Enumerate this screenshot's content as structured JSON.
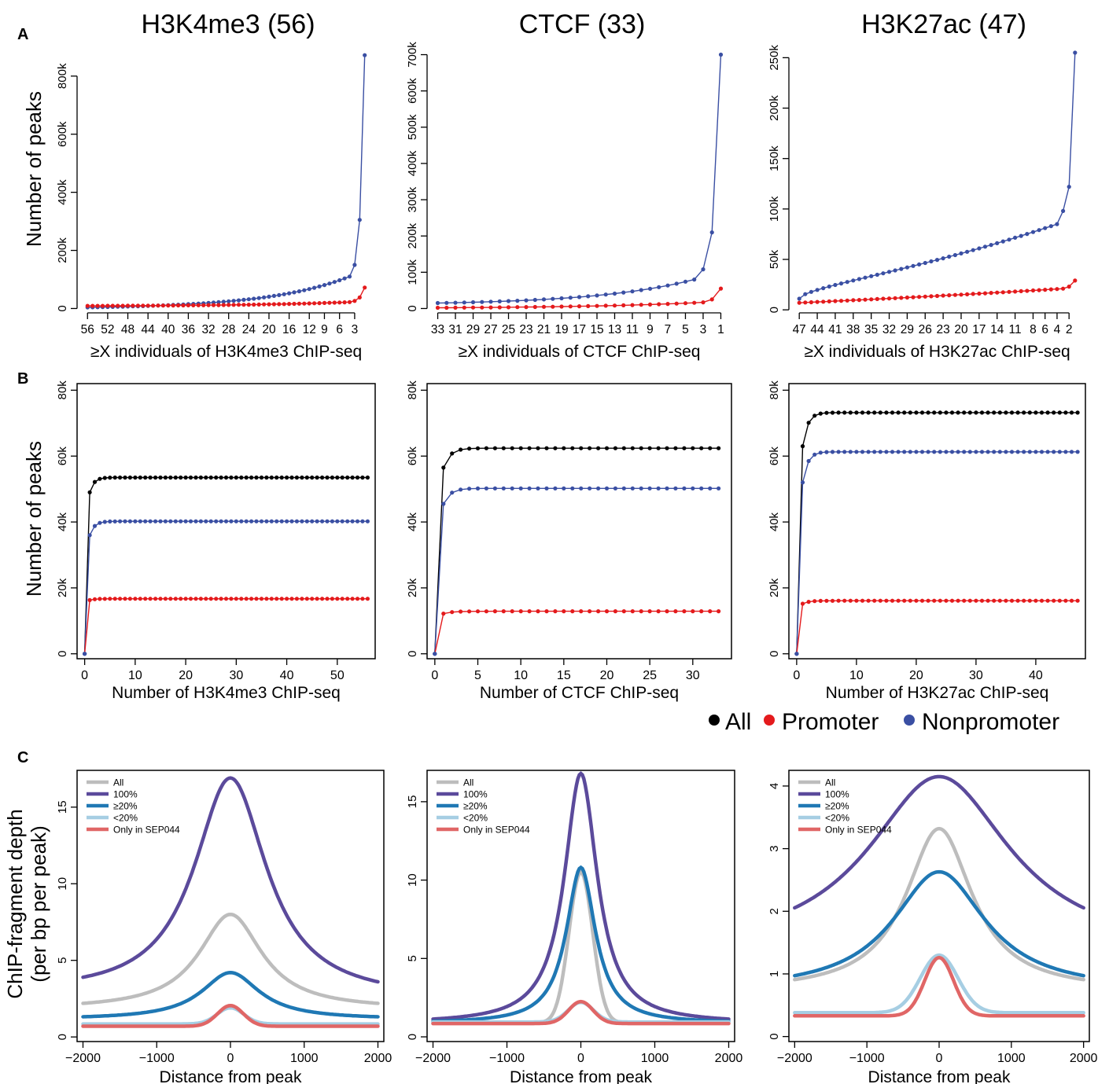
{
  "column_titles": [
    "H3K4me3 (56)",
    "CTCF (33)",
    "H3K27ac (47)"
  ],
  "panel_letters": [
    "A",
    "B",
    "C"
  ],
  "row_ylabels": {
    "A": "Number of peaks",
    "B": "Number of peaks",
    "C": [
      "ChIP-fragment depth",
      "(per bp per peak)"
    ]
  },
  "legend_b": [
    {
      "label": "All",
      "color": "#000000"
    },
    {
      "label": "Promoter",
      "color": "#e41a1c"
    },
    {
      "label": "Nonpromoter",
      "color": "#3a4fa3"
    }
  ],
  "colors": {
    "promoter": "#e41a1c",
    "nonpromoter": "#3a4fa3",
    "all": "#000000",
    "c_all": "#bdbdbd",
    "c_100": "#5b4a9b",
    "c_ge20": "#1f78b4",
    "c_lt20": "#a6cee3",
    "c_sep044": "#e06666"
  },
  "chart_data": [
    {
      "id": "A1",
      "type": "line",
      "xlabel": "≥X individuals of H3K4me3 ChIP-seq",
      "ylabel": "Number of peaks",
      "x_reversed": true,
      "x_from": 56,
      "x_to": 1,
      "xticks": [
        56,
        52,
        48,
        44,
        40,
        36,
        32,
        28,
        24,
        20,
        16,
        12,
        9,
        6,
        3
      ],
      "yticks": [
        0,
        200000,
        400000,
        600000,
        800000
      ],
      "ytick_labels": [
        "0",
        "200k",
        "400k",
        "600k",
        "800k"
      ],
      "ylim": [
        -15000,
        905000
      ],
      "series": [
        {
          "key": "nonpromoter",
          "shape": "exp",
          "start": 4000,
          "end": 110000,
          "k": 3.2,
          "tail": [
            [
              3,
              150000
            ],
            [
              2,
              305000
            ],
            [
              1,
              872000
            ]
          ]
        },
        {
          "key": "promoter",
          "shape": "exp",
          "start": 9000,
          "end": 22000,
          "k": 2.5,
          "tail": [
            [
              3,
              26000
            ],
            [
              2,
              38000
            ],
            [
              1,
              72000
            ]
          ]
        }
      ]
    },
    {
      "id": "A2",
      "type": "line",
      "xlabel": "≥X individuals of CTCF ChIP-seq",
      "ylabel": "",
      "x_reversed": true,
      "x_from": 33,
      "x_to": 1,
      "xticks": [
        33,
        31,
        29,
        27,
        25,
        23,
        21,
        19,
        17,
        15,
        13,
        11,
        9,
        7,
        5,
        3,
        1
      ],
      "yticks": [
        0,
        100000,
        200000,
        300000,
        400000,
        500000,
        600000,
        700000
      ],
      "ytick_labels": [
        "0",
        "100k",
        "200k",
        "300k",
        "400k",
        "500k",
        "600k",
        "700k"
      ],
      "ylim": [
        -12000,
        725000
      ],
      "series": [
        {
          "key": "nonpromoter",
          "shape": "exp",
          "start": 15000,
          "end": 80000,
          "k": 2.6,
          "tail": [
            [
              3,
              108000
            ],
            [
              2,
              210000
            ],
            [
              1,
              700000
            ]
          ]
        },
        {
          "key": "promoter",
          "shape": "exp",
          "start": 2000,
          "end": 17000,
          "k": 2.2,
          "tail": [
            [
              2,
              25000
            ],
            [
              1,
              55000
            ]
          ]
        }
      ]
    },
    {
      "id": "A3",
      "type": "line",
      "xlabel": "≥X individuals of H3K27ac ChIP-seq",
      "ylabel": "",
      "x_reversed": true,
      "x_from": 47,
      "x_to": 1,
      "xticks": [
        47,
        44,
        41,
        38,
        35,
        32,
        29,
        26,
        23,
        20,
        17,
        14,
        11,
        8,
        6,
        4,
        2
      ],
      "yticks": [
        0,
        50000,
        100000,
        150000,
        200000,
        250000
      ],
      "ytick_labels": [
        "0",
        "50k",
        "100k",
        "150k",
        "200k",
        "250k"
      ],
      "ylim": [
        -3000,
        262000
      ],
      "series": [
        {
          "key": "nonpromoter",
          "shape": "sigmoid",
          "start": 11000,
          "end": 85000,
          "tail": [
            [
              3,
              98000
            ],
            [
              2,
              122000
            ],
            [
              1,
              255000
            ]
          ]
        },
        {
          "key": "promoter",
          "shape": "lin",
          "start": 7000,
          "end": 21000,
          "tail": [
            [
              2,
              23000
            ],
            [
              1,
              29000
            ]
          ]
        }
      ]
    },
    {
      "id": "B1",
      "type": "line",
      "xlabel": "Number of H3K4me3 ChIP-seq",
      "ylabel": "Number of peaks",
      "x_reversed": false,
      "x_from": 0,
      "x_to": 56,
      "xticks": [
        0,
        10,
        20,
        30,
        40,
        50
      ],
      "xlim": [
        -1.5,
        57.5
      ],
      "yticks": [
        0,
        20000,
        40000,
        60000,
        80000
      ],
      "ytick_labels": [
        "0",
        "20k",
        "40k",
        "60k",
        "80k"
      ],
      "ylim": [
        -1500,
        82000
      ],
      "series": [
        {
          "key": "all",
          "start": 49000,
          "plateau": 53500,
          "k": 1.2
        },
        {
          "key": "nonpromoter",
          "start": 36000,
          "plateau": 40200,
          "k": 1.1
        },
        {
          "key": "promoter",
          "start": 16300,
          "plateau": 16700,
          "k": 1.0
        }
      ]
    },
    {
      "id": "B2",
      "type": "line",
      "xlabel": "Number of CTCF ChIP-seq",
      "ylabel": "",
      "x_reversed": false,
      "x_from": 0,
      "x_to": 33,
      "xticks": [
        0,
        5,
        10,
        15,
        20,
        25,
        30
      ],
      "xlim": [
        -0.9,
        34.5
      ],
      "yticks": [
        0,
        20000,
        40000,
        60000,
        80000
      ],
      "ytick_labels": [
        "0",
        "20k",
        "40k",
        "60k",
        "80k"
      ],
      "ylim": [
        -1500,
        82000
      ],
      "series": [
        {
          "key": "all",
          "start": 56500,
          "plateau": 62400,
          "k": 1.3
        },
        {
          "key": "nonpromoter",
          "start": 45500,
          "plateau": 50200,
          "k": 1.3
        },
        {
          "key": "promoter",
          "start": 12200,
          "plateau": 12900,
          "k": 1.0
        }
      ]
    },
    {
      "id": "B3",
      "type": "line",
      "xlabel": "Number of H3K27ac ChIP-seq",
      "ylabel": "",
      "x_reversed": false,
      "x_from": 0,
      "x_to": 47,
      "xticks": [
        0,
        10,
        20,
        30,
        40
      ],
      "xlim": [
        -1.3,
        48.3
      ],
      "yticks": [
        0,
        20000,
        40000,
        60000,
        80000
      ],
      "ytick_labels": [
        "0",
        "20k",
        "40k",
        "60k",
        "80k"
      ],
      "ylim": [
        -1500,
        82000
      ],
      "series": [
        {
          "key": "all",
          "start": 63000,
          "plateau": 73200,
          "k": 1.2
        },
        {
          "key": "nonpromoter",
          "start": 52000,
          "plateau": 61300,
          "k": 1.2
        },
        {
          "key": "promoter",
          "start": 15200,
          "plateau": 16100,
          "k": 1.0
        }
      ]
    },
    {
      "id": "C1",
      "type": "line",
      "xlabel": "Distance from peak",
      "ylabel": "ChIP-fragment depth (per bp per peak)",
      "xlim": [
        -2080,
        2080
      ],
      "xticks": [
        -2000,
        -1000,
        0,
        1000,
        2000
      ],
      "xtick_labels": [
        "−2000",
        "−1000",
        "0",
        "1000",
        "2000"
      ],
      "ylim": [
        -0.3,
        17.4
      ],
      "yticks": [
        0,
        5,
        10,
        15
      ],
      "legend": [
        "All",
        "100%",
        "≥20%",
        "<20%",
        "Only in SEP044"
      ],
      "series": [
        {
          "key": "c_all",
          "base": 1.8,
          "peak": 8.0,
          "w": 520,
          "kind": "lor"
        },
        {
          "key": "c_100",
          "base": 2.4,
          "base_left": 2.7,
          "peak": 16.9,
          "w": 600,
          "kind": "lor"
        },
        {
          "key": "c_ge20",
          "base": 1.15,
          "peak": 4.2,
          "w": 480,
          "kind": "lor"
        },
        {
          "key": "c_lt20",
          "base": 0.85,
          "peak": 1.9,
          "w": 180,
          "kind": "gau"
        },
        {
          "key": "c_sep044",
          "base": 0.7,
          "peak": 2.05,
          "w": 175,
          "kind": "gau"
        }
      ]
    },
    {
      "id": "C2",
      "type": "line",
      "xlabel": "Distance from peak",
      "ylabel": "",
      "xlim": [
        -2080,
        2080
      ],
      "xticks": [
        -2000,
        -1000,
        0,
        1000,
        2000
      ],
      "xtick_labels": [
        "−2000",
        "−1000",
        "0",
        "1000",
        "2000"
      ],
      "ylim": [
        -0.3,
        17.0
      ],
      "yticks": [
        0,
        5,
        10,
        15
      ],
      "legend": [
        "All",
        "100%",
        "≥20%",
        "<20%",
        "Only in SEP044"
      ],
      "series": [
        {
          "key": "c_all",
          "base": 0.9,
          "peak": 10.5,
          "w": 160,
          "kind": "gau"
        },
        {
          "key": "c_100",
          "base": 0.85,
          "peak": 16.8,
          "w": 270,
          "kind": "lor"
        },
        {
          "key": "c_ge20",
          "base": 0.85,
          "peak": 10.8,
          "w": 240,
          "kind": "lor"
        },
        {
          "key": "c_lt20",
          "base": 0.95,
          "peak": 2.2,
          "w": 170,
          "kind": "gau"
        },
        {
          "key": "c_sep044",
          "base": 0.85,
          "peak": 2.25,
          "w": 165,
          "kind": "gau"
        }
      ]
    },
    {
      "id": "C3",
      "type": "line",
      "xlabel": "Distance from peak",
      "ylabel": "",
      "xlim": [
        -2080,
        2080
      ],
      "xticks": [
        -2000,
        -1000,
        0,
        1000,
        2000
      ],
      "xtick_labels": [
        "−2000",
        "−1000",
        "0",
        "1000",
        "2000"
      ],
      "ylim": [
        -0.08,
        4.25
      ],
      "yticks": [
        0,
        1,
        2,
        3,
        4
      ],
      "legend": [
        "All",
        "100%",
        "≥20%",
        "<20%",
        "Only in SEP044"
      ],
      "series": [
        {
          "key": "c_all",
          "base": 0.72,
          "peak": 3.32,
          "w": 560,
          "kind": "lor"
        },
        {
          "key": "c_100",
          "base": 1.3,
          "peak": 4.15,
          "w": 1200,
          "kind": "lor"
        },
        {
          "key": "c_ge20",
          "base": 0.72,
          "peak": 2.63,
          "w": 780,
          "kind": "lor"
        },
        {
          "key": "c_lt20",
          "base": 0.38,
          "peak": 1.3,
          "w": 260,
          "kind": "gau"
        },
        {
          "key": "c_sep044",
          "base": 0.33,
          "peak": 1.26,
          "w": 200,
          "kind": "gau"
        }
      ]
    }
  ]
}
